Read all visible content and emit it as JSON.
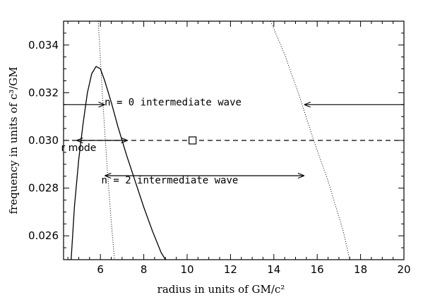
{
  "chart_data": {
    "type": "line",
    "xlabel": "radius in units of GM/c²",
    "ylabel": "frequency in units of c³/GM",
    "xlim": [
      4.3,
      20
    ],
    "ylim": [
      0.025,
      0.035
    ],
    "x_ticks": [
      "6",
      "8",
      "10",
      "12",
      "14",
      "16",
      "18",
      "20"
    ],
    "y_ticks": [
      "0.026",
      "0.028",
      "0.030",
      "0.032",
      "0.034"
    ],
    "grid": false,
    "series": [
      {
        "style": "solid",
        "x": [
          4.65,
          4.8,
          5.0,
          5.2,
          5.4,
          5.6,
          5.8,
          6.0,
          6.2,
          6.5,
          6.8,
          7.2,
          7.6,
          8.0,
          8.4,
          8.8,
          9.0
        ],
        "y": [
          0.025,
          0.0272,
          0.0292,
          0.0307,
          0.032,
          0.0328,
          0.0331,
          0.033,
          0.0325,
          0.0316,
          0.0306,
          0.0294,
          0.0283,
          0.0272,
          0.0262,
          0.0253,
          0.025
        ]
      },
      {
        "style": "dotted",
        "x": [
          5.9,
          6.1,
          6.3,
          6.5,
          6.65
        ],
        "y": [
          0.035,
          0.0318,
          0.029,
          0.0266,
          0.025
        ]
      },
      {
        "style": "dotted",
        "x": [
          13.85,
          14.5,
          15.2,
          15.8,
          16.5,
          17.2,
          17.5
        ],
        "y": [
          0.035,
          0.0336,
          0.0318,
          0.0301,
          0.0283,
          0.0262,
          0.025
        ]
      },
      {
        "style": "dashed",
        "x": [
          4.3,
          20
        ],
        "y": [
          0.03,
          0.03
        ]
      }
    ],
    "markers": [
      {
        "shape": "square",
        "x": 10.25,
        "y": 0.03
      }
    ],
    "arrows": [
      {
        "from": [
          4.3,
          0.0315
        ],
        "to": [
          6.2,
          0.0315
        ],
        "heads": "end"
      },
      {
        "from": [
          20,
          0.0315
        ],
        "to": [
          15.4,
          0.0315
        ],
        "heads": "end"
      },
      {
        "from": [
          4.9,
          0.03
        ],
        "to": [
          7.25,
          0.03
        ],
        "heads": "both"
      },
      {
        "from": [
          6.2,
          0.02852
        ],
        "to": [
          15.4,
          0.02852
        ],
        "heads": "both"
      }
    ],
    "annotations": [
      {
        "text": "n = 0 intermediate wave",
        "x": 9.35,
        "y": 0.03146
      },
      {
        "text": "r mode",
        "x": 5.0,
        "y": 0.02955
      },
      {
        "text": "n = 2 intermediate wave",
        "x": 9.2,
        "y": 0.0282
      }
    ]
  }
}
